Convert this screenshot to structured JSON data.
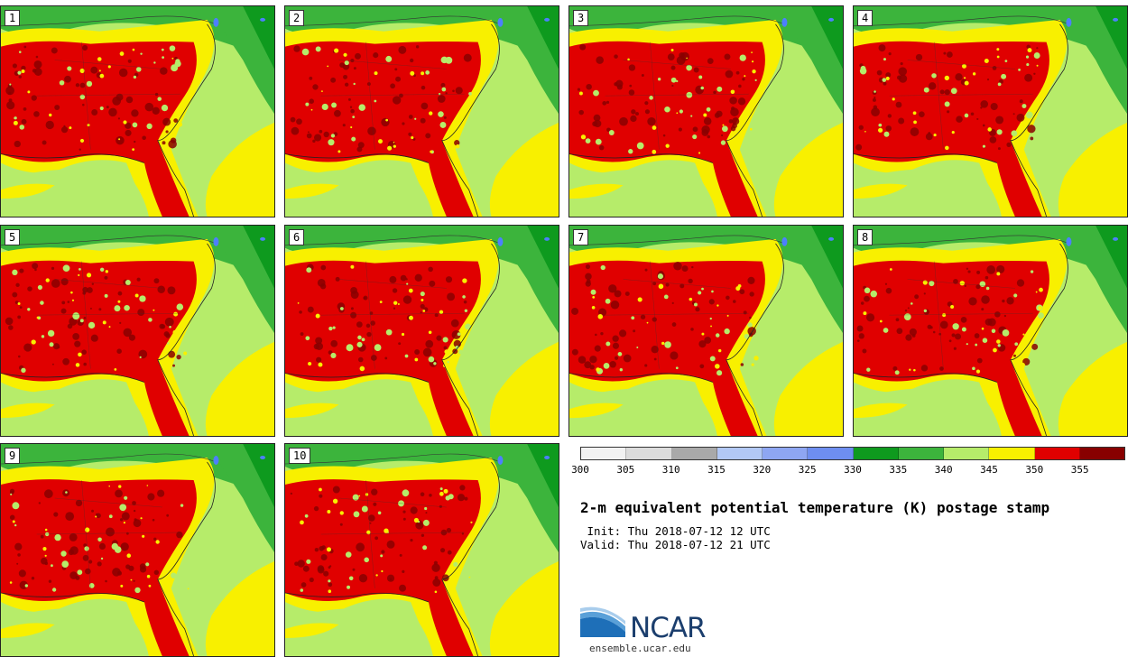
{
  "members": [
    "1",
    "2",
    "3",
    "4",
    "5",
    "6",
    "7",
    "8",
    "9",
    "10"
  ],
  "colorbar": {
    "colors": [
      "#f2f2f2",
      "#dcdcdc",
      "#a9a9a9",
      "#b2c8f5",
      "#8ea6f2",
      "#6e8ef0",
      "#0e9a1e",
      "#3cb43c",
      "#b6ec6a",
      "#f8f000",
      "#e00000",
      "#880000"
    ],
    "labels": [
      "300",
      "305",
      "310",
      "315",
      "320",
      "325",
      "330",
      "335",
      "340",
      "345",
      "350",
      "355"
    ]
  },
  "title": "2-m equivalent potential temperature (K) postage stamp",
  "init": " Init: Thu 2018-07-12 12 UTC",
  "valid": "Valid: Thu 2018-07-12 21 UTC",
  "logo": {
    "text": "NCAR",
    "url": "ensemble.ucar.edu"
  }
}
